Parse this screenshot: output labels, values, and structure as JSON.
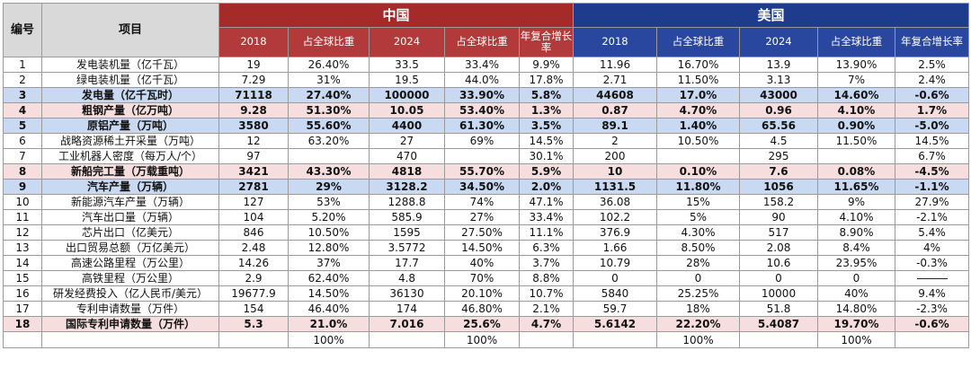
{
  "header": {
    "no_label": "编号",
    "item_label": "项目",
    "china_label": "中国",
    "usa_label": "美国",
    "sub": [
      "2018",
      "占全球比重",
      "2024",
      "占全球比重",
      "年复合增长率"
    ]
  },
  "rows": [
    {
      "no": "1",
      "item": "发电装机量（亿千瓦）",
      "c1": "19",
      "c2": "26.40%",
      "c3": "33.5",
      "c4": "33.4%",
      "c5": "9.9%",
      "u1": "11.96",
      "u2": "16.70%",
      "u3": "13.9",
      "u4": "13.90%",
      "u5": "2.5%",
      "style": ""
    },
    {
      "no": "2",
      "item": "绿电装机量（亿千瓦）",
      "c1": "7.29",
      "c2": "31%",
      "c3": "19.5",
      "c4": "44.0%",
      "c5": "17.8%",
      "u1": "2.71",
      "u2": "11.50%",
      "u3": "3.13",
      "u4": "7%",
      "u5": "2.4%",
      "style": ""
    },
    {
      "no": "3",
      "item": "发电量（亿千瓦时）",
      "c1": "71118",
      "c2": "27.40%",
      "c3": "100000",
      "c4": "33.90%",
      "c5": "5.8%",
      "u1": "44608",
      "u2": "17.0%",
      "u3": "43000",
      "u4": "14.60%",
      "u5": "-0.6%",
      "style": "blue"
    },
    {
      "no": "4",
      "item": "粗钢产量（亿万吨）",
      "c1": "9.28",
      "c2": "51.30%",
      "c3": "10.05",
      "c4": "53.40%",
      "c5": "1.3%",
      "u1": "0.87",
      "u2": "4.70%",
      "u3": "0.96",
      "u4": "4.10%",
      "u5": "1.7%",
      "style": "pink"
    },
    {
      "no": "5",
      "item": "原铝产量（万吨）",
      "c1": "3580",
      "c2": "55.60%",
      "c3": "4400",
      "c4": "61.30%",
      "c5": "3.5%",
      "u1": "89.1",
      "u2": "1.40%",
      "u3": "65.56",
      "u4": "0.90%",
      "u5": "-5.0%",
      "style": "blue"
    },
    {
      "no": "6",
      "item": "战略资源稀土开采量（万吨）",
      "c1": "12",
      "c2": "63.20%",
      "c3": "27",
      "c4": "69%",
      "c5": "14.5%",
      "u1": "2",
      "u2": "10.50%",
      "u3": "4.5",
      "u4": "11.50%",
      "u5": "14.5%",
      "style": ""
    },
    {
      "no": "7",
      "item": "工业机器人密度（每万人/个）",
      "c1": "97",
      "c2": "",
      "c3": "470",
      "c4": "",
      "c5": "30.1%",
      "u1": "200",
      "u2": "",
      "u3": "295",
      "u4": "",
      "u5": "6.7%",
      "style": ""
    },
    {
      "no": "8",
      "item": "新船完工量（万载重吨）",
      "c1": "3421",
      "c2": "43.30%",
      "c3": "4818",
      "c4": "55.70%",
      "c5": "5.9%",
      "u1": "10",
      "u2": "0.10%",
      "u3": "7.6",
      "u4": "0.08%",
      "u5": "-4.5%",
      "style": "pink"
    },
    {
      "no": "9",
      "item": "汽车产量（万辆）",
      "c1": "2781",
      "c2": "29%",
      "c3": "3128.2",
      "c4": "34.50%",
      "c5": "2.0%",
      "u1": "1131.5",
      "u2": "11.80%",
      "u3": "1056",
      "u4": "11.65%",
      "u5": "-1.1%",
      "style": "blue"
    },
    {
      "no": "10",
      "item": "新能源汽车产量（万辆）",
      "c1": "127",
      "c2": "53%",
      "c3": "1288.8",
      "c4": "74%",
      "c5": "47.1%",
      "u1": "36.08",
      "u2": "15%",
      "u3": "158.2",
      "u4": "9%",
      "u5": "27.9%",
      "style": ""
    },
    {
      "no": "11",
      "item": "汽车出口量（万辆）",
      "c1": "104",
      "c2": "5.20%",
      "c3": "585.9",
      "c4": "27%",
      "c5": "33.4%",
      "u1": "102.2",
      "u2": "5%",
      "u3": "90",
      "u4": "4.10%",
      "u5": "-2.1%",
      "style": ""
    },
    {
      "no": "12",
      "item": "芯片出口（亿美元）",
      "c1": "846",
      "c2": "10.50%",
      "c3": "1595",
      "c4": "27.50%",
      "c5": "11.1%",
      "u1": "376.9",
      "u2": "4.30%",
      "u3": "517",
      "u4": "8.90%",
      "u5": "5.4%",
      "style": ""
    },
    {
      "no": "13",
      "item": "出口贸易总额（万亿美元）",
      "c1": "2.48",
      "c2": "12.80%",
      "c3": "3.5772",
      "c4": "14.50%",
      "c5": "6.3%",
      "u1": "1.66",
      "u2": "8.50%",
      "u3": "2.08",
      "u4": "8.4%",
      "u5": "4%",
      "style": ""
    },
    {
      "no": "14",
      "item": "高速公路里程（万公里）",
      "c1": "14.26",
      "c2": "37%",
      "c3": "17.7",
      "c4": "40%",
      "c5": "3.7%",
      "u1": "10.79",
      "u2": "28%",
      "u3": "10.6",
      "u4": "23.95%",
      "u5": "-0.3%",
      "style": ""
    },
    {
      "no": "15",
      "item": "高铁里程（万公里）",
      "c1": "2.9",
      "c2": "62.40%",
      "c3": "4.8",
      "c4": "70%",
      "c5": "8.8%",
      "u1": "0",
      "u2": "0",
      "u3": "0",
      "u4": "0",
      "u5": "",
      "style": "dash"
    },
    {
      "no": "16",
      "item": "研发经费投入（亿人民币/美元）",
      "c1": "19677.9",
      "c2": "14.50%",
      "c3": "36130",
      "c4": "20.10%",
      "c5": "10.7%",
      "u1": "5840",
      "u2": "25.25%",
      "u3": "10000",
      "u4": "40%",
      "u5": "9.4%",
      "style": ""
    },
    {
      "no": "17",
      "item": "专利申请数量（万件）",
      "c1": "154",
      "c2": "46.40%",
      "c3": "174",
      "c4": "46.80%",
      "c5": "2.1%",
      "u1": "59.7",
      "u2": "18%",
      "u3": "51.8",
      "u4": "14.80%",
      "u5": "-2.3%",
      "style": ""
    },
    {
      "no": "18",
      "item": "国际专利申请数量（万件）",
      "c1": "5.3",
      "c2": "21.0%",
      "c3": "7.016",
      "c4": "25.6%",
      "c5": "4.7%",
      "u1": "5.6142",
      "u2": "22.20%",
      "u3": "5.4087",
      "u4": "19.70%",
      "u5": "-0.6%",
      "style": "pink"
    }
  ],
  "footer": {
    "c2": "100%",
    "c4": "100%",
    "u2": "100%",
    "u4": "100%"
  },
  "colors": {
    "china_header": "#a52a2a",
    "usa_header": "#1f3b8c",
    "highlight_blue": "#c9d9f2",
    "highlight_pink": "#f6dede"
  }
}
